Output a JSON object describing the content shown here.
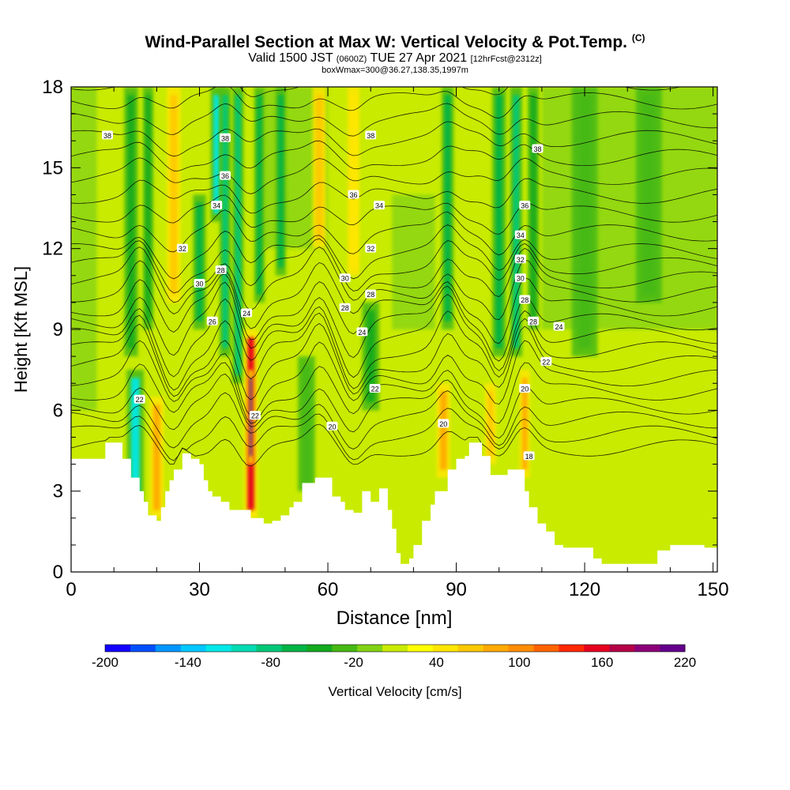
{
  "title": {
    "main": "Wind-Parallel Section at Max W: Vertical Velocity & Pot.Temp.",
    "copyright": "(C)",
    "valid_prefix": "Valid 1500 JST",
    "valid_utc": "(0600Z)",
    "valid_date": "TUE 27 Apr 2021",
    "forecast": "[12hrFcst@2312z]",
    "box": "boxWmax=300@36.27,138.35,1997m"
  },
  "chart_data": {
    "type": "heatmap",
    "xlabel": "Distance [nm]",
    "ylabel": "Height [Kft MSL]",
    "xlim": [
      0,
      151
    ],
    "ylim": [
      0,
      18
    ],
    "xticks": [
      0,
      30,
      60,
      90,
      120,
      150
    ],
    "yticks": [
      0,
      3,
      6,
      9,
      12,
      15,
      18
    ],
    "colorbar": {
      "label": "Vertical Velocity [cm/s]",
      "tick_labels": [
        "-200",
        "-140",
        "-80",
        "-20",
        "40",
        "100",
        "160",
        "220"
      ],
      "tick_values": [
        -200,
        -140,
        -80,
        -20,
        40,
        100,
        160,
        220
      ],
      "colors": [
        "#1400ff",
        "#0050ff",
        "#0096ff",
        "#00c8ff",
        "#00e8e8",
        "#00dcb4",
        "#00c878",
        "#00b446",
        "#14aa1e",
        "#46b914",
        "#82d214",
        "#c8eb00",
        "#ffff00",
        "#ffe600",
        "#ffc800",
        "#ffaa00",
        "#ff8c00",
        "#ff6400",
        "#ff2800",
        "#e6001e",
        "#b40046",
        "#8c0078",
        "#64008c"
      ]
    },
    "terrain_nm_kft": [
      [
        0,
        4.2
      ],
      [
        8,
        4.2
      ],
      [
        8,
        4.8
      ],
      [
        12,
        4.8
      ],
      [
        12,
        4.2
      ],
      [
        14,
        4.2
      ],
      [
        14,
        3.5
      ],
      [
        16,
        3
      ],
      [
        17,
        2.6
      ],
      [
        18,
        2.1
      ],
      [
        20,
        1.9
      ],
      [
        21,
        2.4
      ],
      [
        22,
        3
      ],
      [
        23,
        3.4
      ],
      [
        24,
        3.8
      ],
      [
        26,
        4.4
      ],
      [
        28,
        4.2
      ],
      [
        30,
        4
      ],
      [
        31,
        3.4
      ],
      [
        32,
        3
      ],
      [
        33,
        2.8
      ],
      [
        35,
        2.6
      ],
      [
        37,
        2.3
      ],
      [
        40,
        2.3
      ],
      [
        42,
        2
      ],
      [
        45,
        1.8
      ],
      [
        47,
        1.9
      ],
      [
        49,
        2.1
      ],
      [
        51,
        2.4
      ],
      [
        52,
        2.6
      ],
      [
        54,
        3.3
      ],
      [
        57,
        3.5
      ],
      [
        59,
        3.5
      ],
      [
        61,
        2.8
      ],
      [
        63,
        2.6
      ],
      [
        64,
        2.3
      ],
      [
        66,
        2.2
      ],
      [
        68,
        3
      ],
      [
        70,
        2.6
      ],
      [
        72,
        3.1
      ],
      [
        74,
        2.3
      ],
      [
        75,
        1.6
      ],
      [
        76,
        0.7
      ],
      [
        77,
        0.3
      ],
      [
        79,
        0.5
      ],
      [
        80,
        1
      ],
      [
        82,
        1.9
      ],
      [
        84,
        2.5
      ],
      [
        85,
        3
      ],
      [
        87,
        3
      ],
      [
        88,
        3.8
      ],
      [
        90,
        4.2
      ],
      [
        92,
        4.3
      ],
      [
        93,
        4.8
      ],
      [
        95,
        4.8
      ],
      [
        96,
        4.3
      ],
      [
        98,
        3.6
      ],
      [
        100,
        3.6
      ],
      [
        102,
        3.8
      ],
      [
        105,
        3.8
      ],
      [
        106,
        3
      ],
      [
        107,
        2.4
      ],
      [
        109,
        1.8
      ],
      [
        111,
        1.5
      ],
      [
        113,
        1
      ],
      [
        115,
        0.9
      ],
      [
        118,
        0.9
      ],
      [
        120,
        0.9
      ],
      [
        122,
        0.5
      ],
      [
        124,
        0.3
      ],
      [
        130,
        0.3
      ],
      [
        135,
        0.3
      ],
      [
        137,
        0.8
      ],
      [
        140,
        1
      ],
      [
        145,
        1
      ],
      [
        148,
        0.9
      ],
      [
        151,
        1
      ]
    ],
    "velocity_features": [
      {
        "x": 15,
        "w": 2,
        "z0": 2,
        "z1": 7.5,
        "w_cms": -120
      },
      {
        "x": 20,
        "w": 1.6,
        "z0": 2,
        "z1": 6.5,
        "w_cms": 90
      },
      {
        "x": 14,
        "w": 1.6,
        "z0": 8,
        "z1": 18,
        "w_cms": -50
      },
      {
        "x": 18,
        "w": 1.2,
        "z0": 9,
        "z1": 18,
        "w_cms": -40
      },
      {
        "x": 24,
        "w": 1.6,
        "z0": 10,
        "z1": 18,
        "w_cms": 70
      },
      {
        "x": 30,
        "w": 1.5,
        "z0": 9,
        "z1": 14,
        "w_cms": -60
      },
      {
        "x": 34,
        "w": 1.4,
        "z0": 13,
        "z1": 18,
        "w_cms": -110
      },
      {
        "x": 36,
        "w": 1.3,
        "z0": 8,
        "z1": 18,
        "w_cms": -80
      },
      {
        "x": 39,
        "w": 1.3,
        "z0": 7,
        "z1": 18,
        "w_cms": -90
      },
      {
        "x": 42,
        "w": 1.6,
        "z0": 2,
        "z1": 9,
        "w_cms": 150
      },
      {
        "x": 42,
        "w": 0.6,
        "z0": 4,
        "z1": 7.5,
        "w_cms": 215
      },
      {
        "x": 44,
        "w": 1.2,
        "z0": 10,
        "z1": 18,
        "w_cms": -70
      },
      {
        "x": 49,
        "w": 1.2,
        "z0": 11,
        "z1": 18,
        "w_cms": -60
      },
      {
        "x": 58,
        "w": 1.6,
        "z0": 12,
        "z1": 18,
        "w_cms": 70
      },
      {
        "x": 66,
        "w": 1.4,
        "z0": 11,
        "z1": 18,
        "w_cms": 50
      },
      {
        "x": 87,
        "w": 1.6,
        "z0": 3.5,
        "z1": 7,
        "w_cms": 80
      },
      {
        "x": 88,
        "w": 1.4,
        "z0": 9,
        "z1": 18,
        "w_cms": -60
      },
      {
        "x": 98,
        "w": 1.3,
        "z0": 4,
        "z1": 7,
        "w_cms": 70
      },
      {
        "x": 100,
        "w": 1.6,
        "z0": 8,
        "z1": 18,
        "w_cms": -70
      },
      {
        "x": 104,
        "w": 1.4,
        "z0": 8,
        "z1": 18,
        "w_cms": -80
      },
      {
        "x": 106,
        "w": 1.2,
        "z0": 3.5,
        "z1": 7.5,
        "w_cms": 90
      },
      {
        "x": 108,
        "w": 1.3,
        "z0": 9,
        "z1": 18,
        "w_cms": -50
      },
      {
        "x": 70,
        "w": 2,
        "z0": 6,
        "z1": 10,
        "w_cms": -40
      },
      {
        "x": 55,
        "w": 2,
        "z0": 3,
        "z1": 8,
        "w_cms": -30
      },
      {
        "x": 120,
        "w": 3,
        "z0": 8,
        "z1": 18,
        "w_cms": -25
      },
      {
        "x": 135,
        "w": 3,
        "z0": 10,
        "z1": 18,
        "w_cms": -25
      }
    ],
    "contour_labels": [
      {
        "text": "38",
        "x": 8.5,
        "y": 16.2
      },
      {
        "text": "38",
        "x": 36,
        "y": 16.1
      },
      {
        "text": "38",
        "x": 70,
        "y": 16.2
      },
      {
        "text": "38",
        "x": 109,
        "y": 15.7
      },
      {
        "text": "36",
        "x": 36,
        "y": 14.7
      },
      {
        "text": "36",
        "x": 66,
        "y": 14
      },
      {
        "text": "36",
        "x": 106,
        "y": 13.6
      },
      {
        "text": "34",
        "x": 34,
        "y": 13.6
      },
      {
        "text": "34",
        "x": 72,
        "y": 13.6
      },
      {
        "text": "34",
        "x": 105,
        "y": 12.5
      },
      {
        "text": "32",
        "x": 26,
        "y": 12
      },
      {
        "text": "32",
        "x": 70,
        "y": 12
      },
      {
        "text": "32",
        "x": 105,
        "y": 11.6
      },
      {
        "text": "30",
        "x": 30,
        "y": 10.7
      },
      {
        "text": "30",
        "x": 64,
        "y": 10.9
      },
      {
        "text": "30",
        "x": 105,
        "y": 10.9
      },
      {
        "text": "28",
        "x": 35,
        "y": 11.2
      },
      {
        "text": "28",
        "x": 70,
        "y": 10.3
      },
      {
        "text": "28",
        "x": 64,
        "y": 9.8
      },
      {
        "text": "28",
        "x": 106,
        "y": 10.1
      },
      {
        "text": "28",
        "x": 108,
        "y": 9.3
      },
      {
        "text": "26",
        "x": 33,
        "y": 9.3
      },
      {
        "text": "24",
        "x": 41,
        "y": 9.6
      },
      {
        "text": "24",
        "x": 68,
        "y": 8.9
      },
      {
        "text": "24",
        "x": 114,
        "y": 9.1
      },
      {
        "text": "22",
        "x": 71,
        "y": 6.8
      },
      {
        "text": "22",
        "x": 111,
        "y": 7.8
      },
      {
        "text": "22",
        "x": 16,
        "y": 6.4
      },
      {
        "text": "22",
        "x": 43,
        "y": 5.8
      },
      {
        "text": "20",
        "x": 61,
        "y": 5.4
      },
      {
        "text": "20",
        "x": 87,
        "y": 5.5
      },
      {
        "text": "20",
        "x": 106,
        "y": 6.8
      },
      {
        "text": "18",
        "x": 107,
        "y": 4.3
      }
    ]
  }
}
